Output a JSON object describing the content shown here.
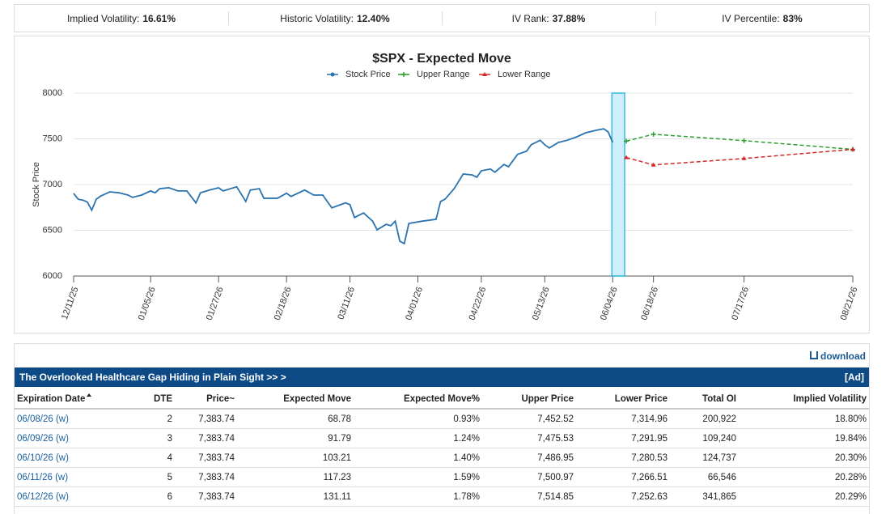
{
  "stats": [
    {
      "label": "Implied Volatility:",
      "value": "16.61%"
    },
    {
      "label": "Historic Volatility:",
      "value": "12.40%"
    },
    {
      "label": "IV Rank:",
      "value": "37.88%"
    },
    {
      "label": "IV Percentile:",
      "value": "83%"
    }
  ],
  "chart_data": {
    "type": "line",
    "title": "$SPX - Expected Move",
    "y_label": "Stock Price",
    "xlim": [
      0,
      172
    ],
    "ylim": [
      6000,
      8000
    ],
    "grid": true,
    "legend": "top",
    "yticks": [
      6000,
      6500,
      7000,
      7500,
      8000
    ],
    "xticks": [
      {
        "value": 0,
        "label": "12/11/25"
      },
      {
        "value": 17,
        "label": "01/05/26"
      },
      {
        "value": 32,
        "label": "01/27/26"
      },
      {
        "value": 47,
        "label": "02/18/26"
      },
      {
        "value": 61,
        "label": "03/11/26"
      },
      {
        "value": 76,
        "label": "04/01/26"
      },
      {
        "value": 90,
        "label": "04/22/26"
      },
      {
        "value": 104,
        "label": "05/13/26"
      },
      {
        "value": 119,
        "label": "06/04/26"
      },
      {
        "value": 128,
        "label": "06/18/26"
      },
      {
        "value": 148,
        "label": "07/17/26"
      },
      {
        "value": 172,
        "label": "08/21/26"
      }
    ],
    "series": [
      {
        "name": "Stock Price",
        "color": "#2a73b0",
        "marker": "circle",
        "dashed": false,
        "x": [
          0,
          1,
          2,
          3,
          4,
          5,
          6,
          8,
          10,
          12,
          13,
          15,
          17,
          18,
          19,
          21,
          23,
          25,
          27,
          28,
          30,
          32,
          33,
          36,
          38,
          39,
          41,
          42,
          45,
          47,
          48,
          51,
          53,
          55,
          57,
          60,
          61,
          62,
          64,
          66,
          67,
          69,
          70,
          71,
          72,
          73,
          74,
          77,
          80,
          81,
          82,
          84,
          86,
          88,
          89,
          90,
          92,
          93,
          95,
          96,
          98,
          100,
          101,
          103,
          104,
          105,
          107,
          109,
          111,
          113,
          115,
          117,
          118,
          119
        ],
        "values": [
          6903,
          6840,
          6830,
          6810,
          6720,
          6840,
          6875,
          6920,
          6910,
          6885,
          6860,
          6885,
          6930,
          6910,
          6955,
          6965,
          6930,
          6930,
          6800,
          6910,
          6940,
          6965,
          6930,
          6975,
          6815,
          6940,
          6955,
          6850,
          6850,
          6905,
          6870,
          6940,
          6885,
          6885,
          6745,
          6800,
          6780,
          6640,
          6690,
          6600,
          6505,
          6565,
          6550,
          6600,
          6380,
          6355,
          6575,
          6600,
          6620,
          6815,
          6840,
          6955,
          7115,
          7105,
          7080,
          7150,
          7170,
          7135,
          7220,
          7195,
          7330,
          7365,
          7435,
          7485,
          7435,
          7400,
          7460,
          7485,
          7520,
          7565,
          7590,
          7610,
          7575,
          7460
        ]
      },
      {
        "name": "Upper Range",
        "color": "#2ca02c",
        "marker": "plus",
        "dashed": true,
        "x": [
          122,
          128,
          148,
          172
        ],
        "values": [
          7475,
          7550,
          7480,
          7385
        ]
      },
      {
        "name": "Lower Range",
        "color": "#d62728",
        "marker": "triangle",
        "dashed": true,
        "x": [
          122,
          128,
          148,
          172
        ],
        "values": [
          7295,
          7215,
          7285,
          7385
        ]
      }
    ]
  },
  "download": "download",
  "banner": {
    "text": "The Overlooked Healthcare Gap Hiding in Plain Sight >> >",
    "tag": "[Ad]"
  },
  "table": {
    "headers": [
      "Expiration Date",
      "DTE",
      "Price~",
      "Expected Move",
      "Expected Move%",
      "Upper Price",
      "Lower Price",
      "Total OI",
      "Implied Volatility"
    ],
    "rows": [
      [
        "06/08/26 (w)",
        2,
        "7,383.74",
        "68.78",
        "0.93%",
        "7,452.52",
        "7,314.96",
        "200,922",
        "18.80%"
      ],
      [
        "06/09/26 (w)",
        3,
        "7,383.74",
        "91.79",
        "1.24%",
        "7,475.53",
        "7,291.95",
        "109,240",
        "19.84%"
      ],
      [
        "06/10/26 (w)",
        4,
        "7,383.74",
        "103.21",
        "1.40%",
        "7,486.95",
        "7,280.53",
        "124,737",
        "20.30%"
      ],
      [
        "06/11/26 (w)",
        5,
        "7,383.74",
        "117.23",
        "1.59%",
        "7,500.97",
        "7,266.51",
        "66,546",
        "20.28%"
      ],
      [
        "06/12/26 (w)",
        6,
        "7,383.74",
        "131.11",
        "1.78%",
        "7,514.85",
        "7,252.63",
        "341,865",
        "20.29%"
      ]
    ]
  }
}
